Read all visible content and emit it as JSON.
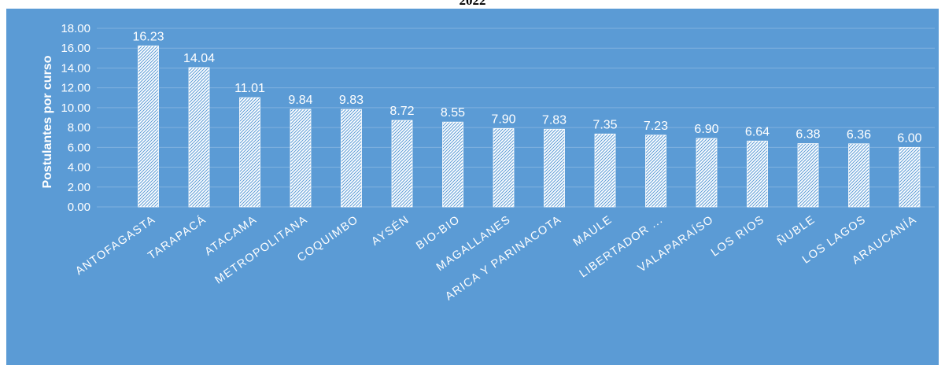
{
  "page_title": "2022",
  "colors": {
    "panel_background": "#5b9bd5",
    "bar_fill": "#ffffff",
    "bar_hatch": "#5b9bd5",
    "text": "#ffffff",
    "gridline": "#7fb1df"
  },
  "chart_data": {
    "type": "bar",
    "title": "2022",
    "xlabel": "",
    "ylabel": "Postulantes por curso",
    "ylim": [
      0,
      18
    ],
    "ytick_step": 2,
    "yticks": [
      "0.00",
      "2.00",
      "4.00",
      "6.00",
      "8.00",
      "10.00",
      "12.00",
      "14.00",
      "16.00",
      "18.00"
    ],
    "grid": true,
    "legend": "none",
    "bar_pattern": "diagonal-hatch",
    "categories": [
      "ANTOFAGASTA",
      "TARAPACÁ",
      "ATACAMA",
      "METROPOLITANA",
      "COQUIMBO",
      "AYSÉN",
      "BIO-BIO",
      "MAGALLANES",
      "ARICA Y PARINACOTA",
      "MAULE",
      "LIBERTADOR ...",
      "VALAPARAÍSO",
      "LOS RIOS",
      "ÑUBLE",
      "LOS LAGOS",
      "ARAUCANÍA"
    ],
    "values": [
      16.23,
      14.04,
      11.01,
      9.84,
      9.83,
      8.72,
      8.55,
      7.9,
      7.83,
      7.35,
      7.23,
      6.9,
      6.64,
      6.38,
      6.36,
      6.0
    ],
    "value_labels": [
      "16.23",
      "14.04",
      "11.01",
      "9.84",
      "9.83",
      "8.72",
      "8.55",
      "7.90",
      "7.83",
      "7.35",
      "7.23",
      "6.90",
      "6.64",
      "6.38",
      "6.36",
      "6.00"
    ]
  }
}
